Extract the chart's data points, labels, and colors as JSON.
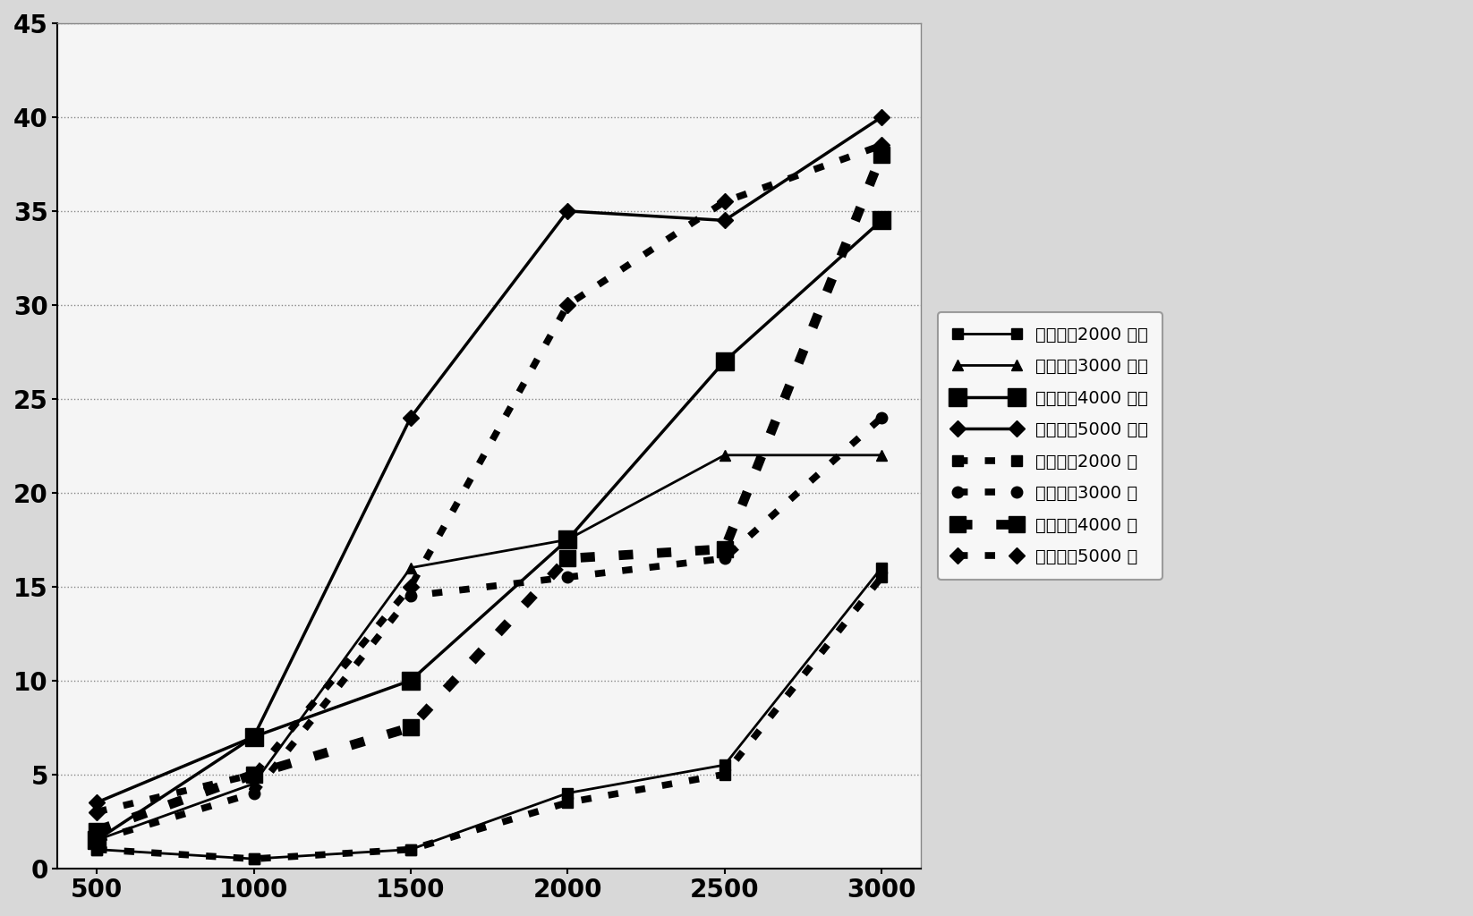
{
  "x": [
    500,
    1000,
    1500,
    2000,
    2500,
    3000
  ],
  "series": [
    {
      "label": "主路流量2000 不设",
      "y": [
        1.0,
        0.5,
        1.0,
        4.0,
        5.5,
        16.0
      ],
      "linestyle": "-",
      "marker": "s",
      "linewidth": 2.0,
      "markersize": 9
    },
    {
      "label": "主路流量3000 不设",
      "y": [
        1.5,
        4.5,
        16.0,
        17.5,
        22.0,
        22.0
      ],
      "linestyle": "-",
      "marker": "^",
      "linewidth": 2.0,
      "markersize": 9
    },
    {
      "label": "主路流量4000 不设",
      "y": [
        1.5,
        7.0,
        10.0,
        17.5,
        27.0,
        34.5
      ],
      "linestyle": "-",
      "marker": "s",
      "linewidth": 2.5,
      "markersize": 15
    },
    {
      "label": "主路流量5000 不设",
      "y": [
        3.5,
        7.0,
        24.0,
        35.0,
        34.5,
        40.0
      ],
      "linestyle": "-",
      "marker": "D",
      "linewidth": 2.5,
      "markersize": 9
    },
    {
      "label": "主路流量2000 设",
      "y": [
        1.0,
        0.5,
        1.0,
        3.5,
        5.0,
        15.5
      ],
      "linestyle": "dotted",
      "marker": "s",
      "linewidth": 2.5,
      "markersize": 9
    },
    {
      "label": "主路流量3000 设",
      "y": [
        1.5,
        4.0,
        14.5,
        15.5,
        16.5,
        24.0
      ],
      "linestyle": "dotted",
      "marker": "o",
      "linewidth": 2.5,
      "markersize": 9
    },
    {
      "label": "主路流量4000 设",
      "y": [
        2.0,
        5.0,
        7.5,
        16.5,
        17.0,
        38.0
      ],
      "linestyle": "dotted",
      "marker": "s",
      "linewidth": 3.5,
      "markersize": 13
    },
    {
      "label": "主路流量5000 设",
      "y": [
        3.0,
        5.0,
        15.0,
        30.0,
        35.5,
        38.5
      ],
      "linestyle": "dotted",
      "marker": "D",
      "linewidth": 2.5,
      "markersize": 9
    }
  ],
  "xlim": [
    375,
    3125
  ],
  "ylim": [
    0,
    45
  ],
  "xticks": [
    500,
    1000,
    1500,
    2000,
    2500,
    3000
  ],
  "yticks": [
    0,
    5,
    10,
    15,
    20,
    25,
    30,
    35,
    40,
    45
  ],
  "color": "#000000",
  "grid_color": "#888888",
  "background_color": "#f0f0f0",
  "plot_bg_color": "#f5f5f5",
  "legend_fontsize": 14,
  "tick_fontsize": 20,
  "figure_width": 16.46,
  "figure_height": 10.24
}
